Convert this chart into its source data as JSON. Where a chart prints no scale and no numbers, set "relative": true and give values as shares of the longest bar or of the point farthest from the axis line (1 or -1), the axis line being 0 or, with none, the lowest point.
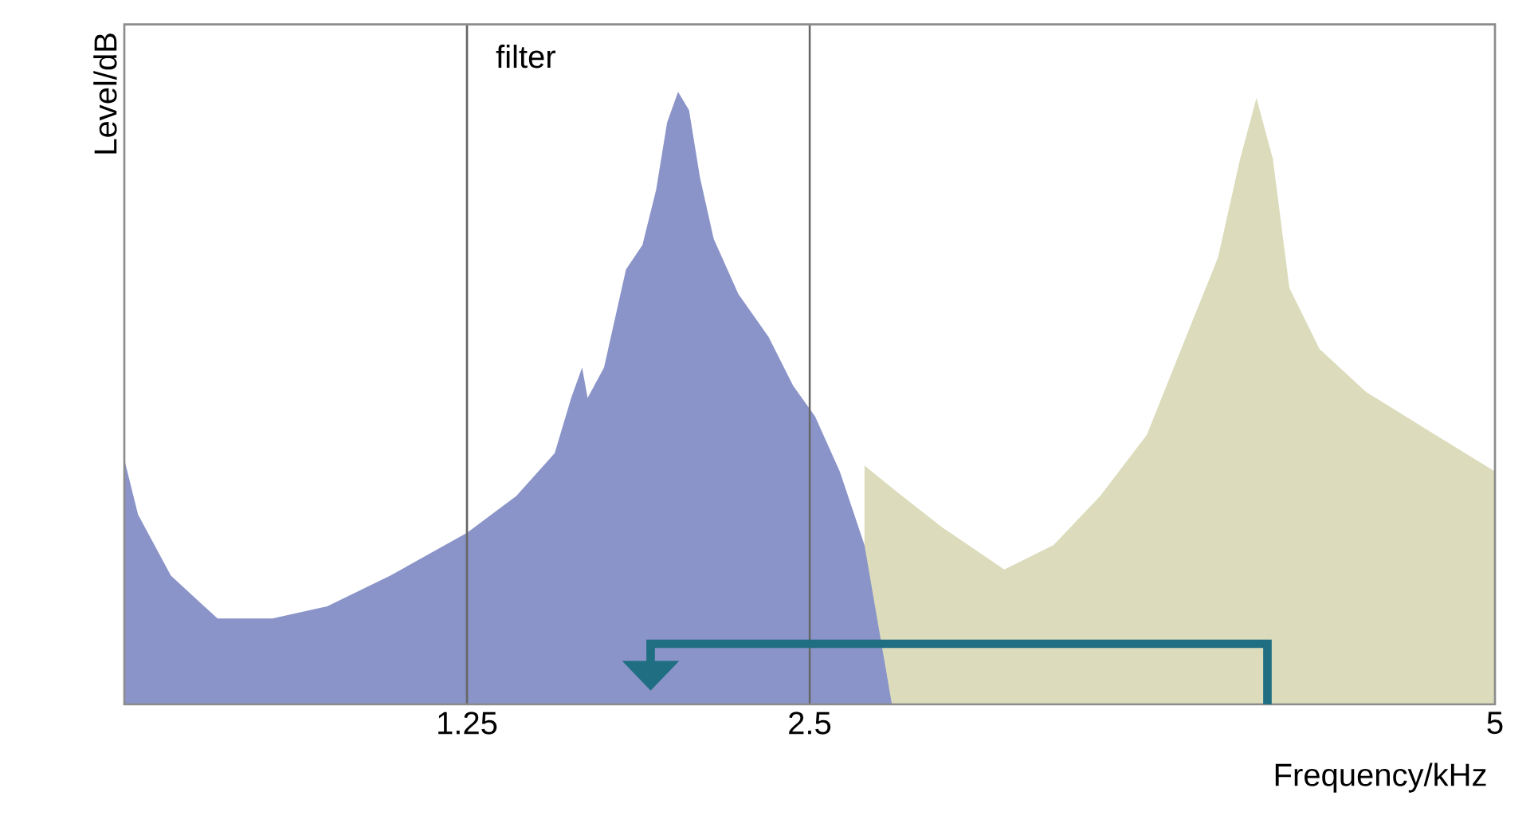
{
  "chart_data": {
    "type": "area",
    "relative": true,
    "xlabel": "Frequency/kHz",
    "ylabel": "Level/dB",
    "xlim": [
      0,
      5
    ],
    "xticks": [
      1.25,
      2.5,
      5
    ],
    "tick_labels": "x",
    "ref_lines": [
      {
        "axis": "x",
        "value": 1.25,
        "label": "filter",
        "color": "#666666"
      },
      {
        "axis": "x",
        "value": 2.5,
        "color": "#666666"
      }
    ],
    "series": [
      {
        "color": "#dcdcbc",
        "x": [
          2.7,
          2.81,
          2.98,
          3.21,
          3.39,
          3.56,
          3.73,
          3.9,
          3.99,
          4.07,
          4.13,
          4.19,
          4.25,
          4.36,
          4.53,
          4.71,
          5.0
        ],
        "values": [
          0.39,
          0.35,
          0.29,
          0.22,
          0.26,
          0.34,
          0.44,
          0.63,
          0.73,
          0.89,
          0.99,
          0.89,
          0.68,
          0.58,
          0.51,
          0.46,
          0.38
        ]
      },
      {
        "color": "#8a94c8",
        "x": [
          0,
          0.05,
          0.17,
          0.34,
          0.54,
          0.74,
          0.97,
          1.25,
          1.43,
          1.57,
          1.63,
          1.67,
          1.69,
          1.75,
          1.8,
          1.83,
          1.89,
          1.94,
          1.98,
          2.02,
          2.06,
          2.1,
          2.15,
          2.24,
          2.35,
          2.44,
          2.52,
          2.61,
          2.7,
          2.75,
          2.8
        ],
        "values": [
          0.4,
          0.31,
          0.21,
          0.14,
          0.14,
          0.16,
          0.21,
          0.28,
          0.34,
          0.41,
          0.5,
          0.55,
          0.5,
          0.55,
          0.65,
          0.71,
          0.75,
          0.84,
          0.95,
          1.0,
          0.97,
          0.86,
          0.76,
          0.67,
          0.6,
          0.52,
          0.47,
          0.38,
          0.26,
          0.13,
          0
        ]
      }
    ]
  }
}
